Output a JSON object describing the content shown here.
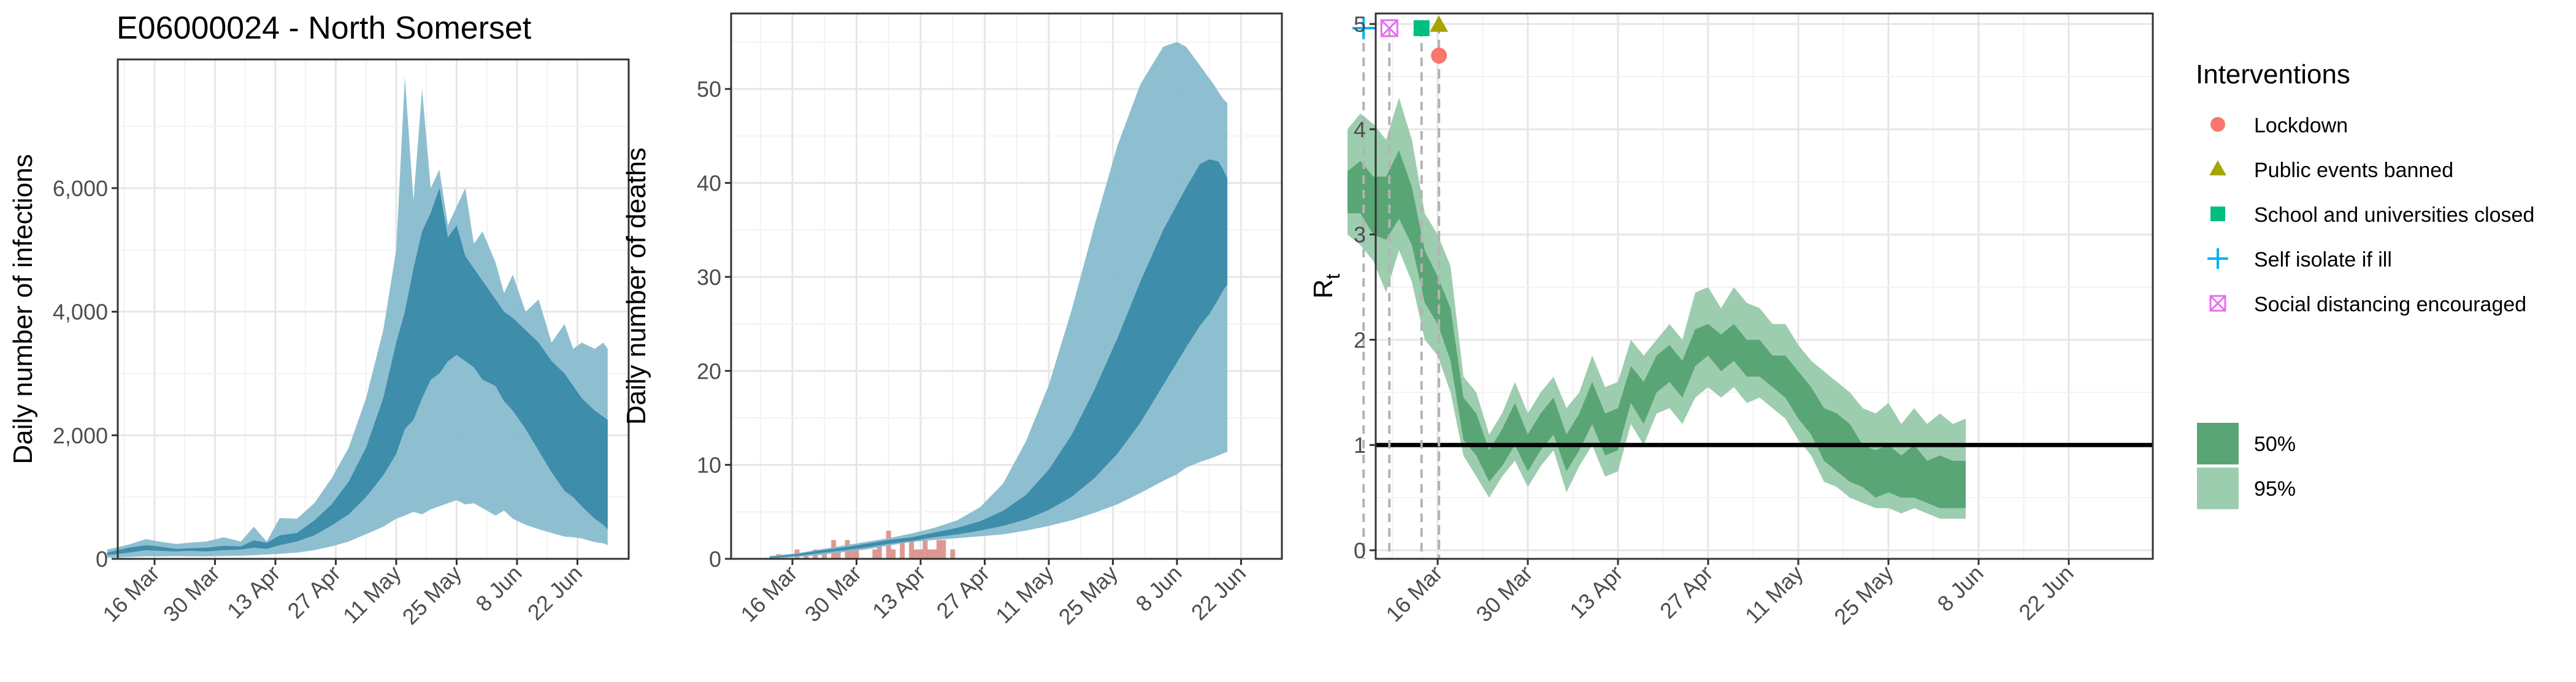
{
  "title": "E06000024 - North Somerset",
  "colors": {
    "infections_95": "#88bccf",
    "infections_50": "#3a8aa8",
    "deaths_observed": "#d9877f",
    "deaths_line": "#3a8aa8",
    "rt_95": "#9dcdaf",
    "rt_50": "#5aa575",
    "lockdown": "#f8766d",
    "public_events": "#a3a500",
    "schools": "#00bf7d",
    "self_isolate": "#00b0f6",
    "social_distancing": "#e76bf3"
  },
  "chart_data": [
    {
      "type": "area",
      "ylabel": "Daily number of infections",
      "x_ticks": [
        "16 Mar",
        "30 Mar",
        "13 Apr",
        "27 Apr",
        "11 May",
        "25 May",
        "8 Jun",
        "22 Jun"
      ],
      "y_ticks": [
        "0",
        "2,000",
        "4,000",
        "6,000"
      ],
      "ylim": [
        0,
        7800
      ],
      "x_range_days": [
        0,
        120
      ],
      "grid": true,
      "band_95": [
        [
          3,
          20,
          150
        ],
        [
          8,
          30,
          230
        ],
        [
          12,
          40,
          320
        ],
        [
          15,
          40,
          280
        ],
        [
          19,
          45,
          240
        ],
        [
          22,
          40,
          260
        ],
        [
          26,
          40,
          280
        ],
        [
          30,
          45,
          350
        ],
        [
          34,
          50,
          280
        ],
        [
          37,
          60,
          520
        ],
        [
          40,
          70,
          280
        ],
        [
          43,
          80,
          660
        ],
        [
          47,
          100,
          650
        ],
        [
          51,
          140,
          900
        ],
        [
          55,
          200,
          1300
        ],
        [
          59,
          280,
          1800
        ],
        [
          63,
          400,
          2600
        ],
        [
          67,
          520,
          3700
        ],
        [
          70,
          650,
          5000
        ],
        [
          72,
          700,
          7800
        ],
        [
          74,
          760,
          5800
        ],
        [
          76,
          720,
          7600
        ],
        [
          78,
          800,
          6000
        ],
        [
          80,
          850,
          6300
        ],
        [
          82,
          900,
          5400
        ],
        [
          84,
          950,
          5700
        ],
        [
          86,
          880,
          6000
        ],
        [
          88,
          900,
          5100
        ],
        [
          90,
          820,
          5300
        ],
        [
          93,
          700,
          4800
        ],
        [
          95,
          780,
          4300
        ],
        [
          97,
          650,
          4600
        ],
        [
          100,
          550,
          4000
        ],
        [
          103,
          480,
          4200
        ],
        [
          106,
          420,
          3500
        ],
        [
          109,
          360,
          3800
        ],
        [
          111,
          350,
          3400
        ],
        [
          113,
          330,
          3500
        ],
        [
          116,
          270,
          3400
        ],
        [
          118,
          250,
          3500
        ],
        [
          119,
          220,
          3400
        ]
      ],
      "band_50": [
        [
          3,
          60,
          100
        ],
        [
          8,
          100,
          180
        ],
        [
          12,
          140,
          220
        ],
        [
          15,
          130,
          200
        ],
        [
          19,
          120,
          160
        ],
        [
          22,
          130,
          170
        ],
        [
          26,
          120,
          180
        ],
        [
          30,
          140,
          210
        ],
        [
          34,
          150,
          200
        ],
        [
          37,
          180,
          300
        ],
        [
          40,
          160,
          260
        ],
        [
          43,
          220,
          380
        ],
        [
          47,
          280,
          420
        ],
        [
          51,
          380,
          620
        ],
        [
          55,
          540,
          880
        ],
        [
          59,
          720,
          1250
        ],
        [
          63,
          1000,
          1800
        ],
        [
          67,
          1350,
          2600
        ],
        [
          70,
          1700,
          3500
        ],
        [
          72,
          2100,
          4000
        ],
        [
          74,
          2250,
          4700
        ],
        [
          76,
          2600,
          5300
        ],
        [
          78,
          2900,
          5600
        ],
        [
          80,
          3000,
          6000
        ],
        [
          82,
          3200,
          5200
        ],
        [
          84,
          3300,
          5400
        ],
        [
          86,
          3200,
          4900
        ],
        [
          88,
          3100,
          4700
        ],
        [
          90,
          2900,
          4500
        ],
        [
          93,
          2800,
          4200
        ],
        [
          95,
          2550,
          4000
        ],
        [
          97,
          2400,
          3900
        ],
        [
          100,
          2100,
          3700
        ],
        [
          103,
          1750,
          3500
        ],
        [
          106,
          1400,
          3200
        ],
        [
          109,
          1100,
          3000
        ],
        [
          111,
          1000,
          2800
        ],
        [
          113,
          850,
          2600
        ],
        [
          116,
          650,
          2400
        ],
        [
          118,
          550,
          2300
        ],
        [
          119,
          480,
          2250
        ]
      ]
    },
    {
      "type": "bar+area",
      "ylabel": "Daily number of deaths",
      "x_ticks": [
        "16 Mar",
        "30 Mar",
        "13 Apr",
        "27 Apr",
        "11 May",
        "25 May",
        "8 Jun",
        "22 Jun"
      ],
      "y_ticks": [
        "0",
        "10",
        "20",
        "30",
        "40",
        "50"
      ],
      "ylim": [
        0,
        56
      ],
      "x_range_days": [
        0,
        120
      ],
      "grid": true,
      "observed_deaths": [
        [
          11,
          0.5
        ],
        [
          13,
          0
        ],
        [
          15,
          1
        ],
        [
          17,
          0.5
        ],
        [
          19,
          1
        ],
        [
          21,
          0.5
        ],
        [
          23,
          2
        ],
        [
          24,
          1
        ],
        [
          26,
          2
        ],
        [
          27,
          1
        ],
        [
          28,
          1.5
        ],
        [
          30,
          0
        ],
        [
          32,
          1
        ],
        [
          33,
          2
        ],
        [
          35,
          3
        ],
        [
          36,
          1
        ],
        [
          38,
          2
        ],
        [
          39,
          0
        ],
        [
          40,
          2
        ],
        [
          41,
          1
        ],
        [
          42,
          1
        ],
        [
          43,
          2
        ],
        [
          44,
          1
        ],
        [
          45,
          1
        ],
        [
          46,
          2
        ],
        [
          47,
          2
        ],
        [
          48,
          0
        ],
        [
          49,
          1
        ]
      ],
      "band_95": [
        [
          9,
          0,
          0.3
        ],
        [
          15,
          0.2,
          0.6
        ],
        [
          20,
          0.4,
          1.0
        ],
        [
          25,
          0.7,
          1.4
        ],
        [
          30,
          1.0,
          1.8
        ],
        [
          35,
          1.4,
          2.2
        ],
        [
          40,
          1.8,
          2.7
        ],
        [
          45,
          2.0,
          3.3
        ],
        [
          50,
          2.2,
          4.1
        ],
        [
          55,
          2.4,
          5.5
        ],
        [
          60,
          2.6,
          8.0
        ],
        [
          65,
          3.0,
          12.5
        ],
        [
          70,
          3.5,
          18.5
        ],
        [
          75,
          4.1,
          26.5
        ],
        [
          80,
          4.9,
          35.5
        ],
        [
          85,
          5.8,
          44.0
        ],
        [
          90,
          7.0,
          50.5
        ],
        [
          95,
          8.3,
          54.5
        ],
        [
          98,
          9.0,
          55.0
        ],
        [
          100,
          9.7,
          54.5
        ],
        [
          103,
          10.3,
          52.5
        ],
        [
          106,
          10.8,
          50.5
        ],
        [
          108,
          11.2,
          49.0
        ],
        [
          109,
          11.4,
          48.5
        ]
      ],
      "band_50": [
        [
          9,
          0.1,
          0.2
        ],
        [
          15,
          0.3,
          0.5
        ],
        [
          20,
          0.6,
          0.9
        ],
        [
          25,
          0.9,
          1.2
        ],
        [
          30,
          1.2,
          1.6
        ],
        [
          35,
          1.6,
          2.0
        ],
        [
          40,
          1.9,
          2.3
        ],
        [
          45,
          2.3,
          2.8
        ],
        [
          50,
          2.6,
          3.3
        ],
        [
          55,
          3.0,
          4.0
        ],
        [
          60,
          3.5,
          5.1
        ],
        [
          65,
          4.2,
          6.8
        ],
        [
          70,
          5.2,
          9.5
        ],
        [
          75,
          6.6,
          13.2
        ],
        [
          80,
          8.6,
          18.0
        ],
        [
          85,
          11.2,
          23.5
        ],
        [
          90,
          14.5,
          29.5
        ],
        [
          95,
          18.5,
          35.0
        ],
        [
          100,
          22.5,
          39.5
        ],
        [
          103,
          24.8,
          42.0
        ],
        [
          105,
          26.0,
          42.5
        ],
        [
          107,
          27.6,
          42.3
        ],
        [
          108,
          28.5,
          41.5
        ],
        [
          109,
          29.2,
          40.5
        ]
      ]
    },
    {
      "type": "area",
      "ylabel": "R",
      "ylabel_subscript": "t",
      "x_ticks": [
        "16 Mar",
        "30 Mar",
        "13 Apr",
        "27 Apr",
        "11 May",
        "25 May",
        "8 Jun",
        "22 Jun"
      ],
      "y_ticks": [
        "0",
        "1",
        "2",
        "3",
        "4",
        "5"
      ],
      "ylim": [
        0,
        5
      ],
      "x_range_days": [
        0,
        120
      ],
      "grid": true,
      "reference_line": 1,
      "band_95": [
        [
          0,
          3.0,
          4.0
        ],
        [
          2,
          2.9,
          4.15
        ],
        [
          4,
          2.75,
          4.05
        ],
        [
          6,
          2.45,
          3.9
        ],
        [
          8,
          2.85,
          4.3
        ],
        [
          10,
          2.55,
          3.9
        ],
        [
          12,
          2.0,
          3.2
        ],
        [
          14,
          1.85,
          3.0
        ],
        [
          16,
          1.5,
          2.7
        ],
        [
          18,
          0.9,
          1.65
        ],
        [
          20,
          0.7,
          1.5
        ],
        [
          22,
          0.5,
          1.1
        ],
        [
          24,
          0.7,
          1.3
        ],
        [
          26,
          0.85,
          1.6
        ],
        [
          28,
          0.6,
          1.3
        ],
        [
          30,
          0.8,
          1.5
        ],
        [
          32,
          0.95,
          1.65
        ],
        [
          34,
          0.55,
          1.35
        ],
        [
          36,
          0.8,
          1.5
        ],
        [
          38,
          1.0,
          1.85
        ],
        [
          40,
          0.7,
          1.55
        ],
        [
          42,
          0.75,
          1.6
        ],
        [
          44,
          1.2,
          2.0
        ],
        [
          46,
          1.0,
          1.85
        ],
        [
          48,
          1.3,
          2.0
        ],
        [
          50,
          1.35,
          2.15
        ],
        [
          52,
          1.2,
          2.0
        ],
        [
          54,
          1.45,
          2.45
        ],
        [
          56,
          1.55,
          2.5
        ],
        [
          58,
          1.45,
          2.3
        ],
        [
          60,
          1.55,
          2.5
        ],
        [
          62,
          1.4,
          2.35
        ],
        [
          64,
          1.45,
          2.3
        ],
        [
          66,
          1.35,
          2.15
        ],
        [
          68,
          1.25,
          2.15
        ],
        [
          70,
          1.05,
          1.95
        ],
        [
          72,
          0.9,
          1.8
        ],
        [
          74,
          0.65,
          1.7
        ],
        [
          76,
          0.6,
          1.6
        ],
        [
          78,
          0.5,
          1.5
        ],
        [
          80,
          0.45,
          1.35
        ],
        [
          82,
          0.4,
          1.3
        ],
        [
          84,
          0.4,
          1.4
        ],
        [
          86,
          0.35,
          1.2
        ],
        [
          88,
          0.4,
          1.35
        ],
        [
          90,
          0.35,
          1.2
        ],
        [
          92,
          0.3,
          1.3
        ],
        [
          94,
          0.3,
          1.2
        ],
        [
          96,
          0.3,
          1.25
        ]
      ],
      "band_50": [
        [
          0,
          3.2,
          3.6
        ],
        [
          2,
          3.2,
          3.7
        ],
        [
          4,
          3.0,
          3.55
        ],
        [
          6,
          2.95,
          3.55
        ],
        [
          8,
          3.15,
          3.8
        ],
        [
          10,
          2.9,
          3.45
        ],
        [
          12,
          2.35,
          2.85
        ],
        [
          14,
          2.15,
          2.6
        ],
        [
          16,
          1.8,
          2.3
        ],
        [
          18,
          1.05,
          1.45
        ],
        [
          20,
          0.9,
          1.3
        ],
        [
          22,
          0.65,
          0.95
        ],
        [
          24,
          0.8,
          1.15
        ],
        [
          26,
          1.0,
          1.4
        ],
        [
          28,
          0.75,
          1.1
        ],
        [
          30,
          0.95,
          1.3
        ],
        [
          32,
          1.1,
          1.45
        ],
        [
          34,
          0.75,
          1.1
        ],
        [
          36,
          0.95,
          1.3
        ],
        [
          38,
          1.2,
          1.6
        ],
        [
          40,
          0.9,
          1.3
        ],
        [
          42,
          0.95,
          1.35
        ],
        [
          44,
          1.4,
          1.75
        ],
        [
          46,
          1.2,
          1.6
        ],
        [
          48,
          1.5,
          1.85
        ],
        [
          50,
          1.6,
          1.95
        ],
        [
          52,
          1.45,
          1.8
        ],
        [
          54,
          1.75,
          2.1
        ],
        [
          56,
          1.85,
          2.15
        ],
        [
          58,
          1.7,
          2.05
        ],
        [
          60,
          1.8,
          2.15
        ],
        [
          62,
          1.65,
          2.0
        ],
        [
          64,
          1.65,
          2.0
        ],
        [
          66,
          1.55,
          1.85
        ],
        [
          68,
          1.45,
          1.85
        ],
        [
          70,
          1.25,
          1.7
        ],
        [
          72,
          1.1,
          1.55
        ],
        [
          74,
          0.85,
          1.35
        ],
        [
          76,
          0.75,
          1.3
        ],
        [
          78,
          0.65,
          1.2
        ],
        [
          80,
          0.6,
          1.0
        ],
        [
          82,
          0.5,
          0.95
        ],
        [
          84,
          0.55,
          1.0
        ],
        [
          86,
          0.5,
          0.9
        ],
        [
          88,
          0.5,
          1.0
        ],
        [
          90,
          0.45,
          0.85
        ],
        [
          92,
          0.4,
          0.9
        ],
        [
          94,
          0.4,
          0.85
        ],
        [
          96,
          0.4,
          0.85
        ]
      ],
      "interventions": [
        {
          "label": "Self isolate if ill",
          "day": 2.5,
          "y": 4.96,
          "color": "#00b0f6"
        },
        {
          "label": "Social distancing encouraged",
          "day": 6.5,
          "y": 4.96,
          "color": "#e76bf3"
        },
        {
          "label": "School and universities closed",
          "day": 11.5,
          "y": 4.96,
          "color": "#00bf7d"
        },
        {
          "label": "Public events banned",
          "day": 14.2,
          "y": 4.99,
          "color": "#a3a500"
        },
        {
          "label": "Lockdown",
          "day": 14.2,
          "y": 4.7,
          "color": "#f8766d"
        }
      ]
    }
  ],
  "legend": {
    "interventions_title": "Interventions",
    "interventions": [
      {
        "label": "Lockdown",
        "color": "#f8766d",
        "shape": "circle"
      },
      {
        "label": "Public events banned",
        "color": "#a3a500",
        "shape": "triangle"
      },
      {
        "label": "School and universities closed",
        "color": "#00bf7d",
        "shape": "square"
      },
      {
        "label": "Self isolate if ill",
        "color": "#00b0f6",
        "shape": "plus"
      },
      {
        "label": "Social distancing encouraged",
        "color": "#e76bf3",
        "shape": "boxcross"
      }
    ],
    "bands": [
      {
        "label": "50%",
        "color": "#5aa575"
      },
      {
        "label": "95%",
        "color": "#9dcdaf"
      }
    ]
  }
}
